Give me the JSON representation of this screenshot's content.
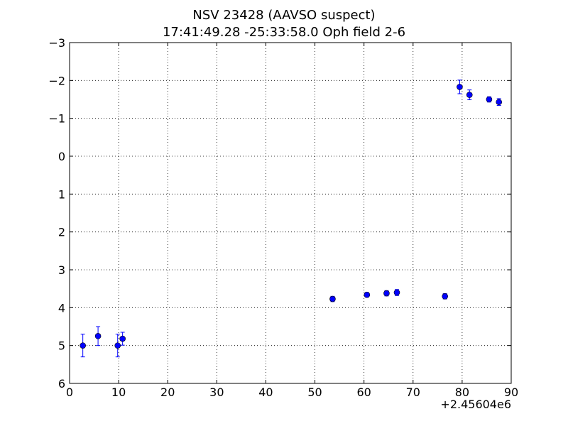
{
  "chart_data": {
    "type": "scatter",
    "title": "NSV 23428 (AAVSO suspect)",
    "subtitle": "17:41:49.28 -25:33:58.0 Oph field 2-6",
    "xlabel": "",
    "ylabel": "",
    "x_offset_label": "+2.45604e6",
    "xlim": [
      0,
      90
    ],
    "ylim": [
      6,
      -3
    ],
    "y_inverted": true,
    "grid": true,
    "grid_style": "dotted",
    "x_ticks": [
      0,
      10,
      20,
      30,
      40,
      50,
      60,
      70,
      80,
      90
    ],
    "y_ticks": [
      -3,
      -2,
      -1,
      0,
      1,
      2,
      3,
      4,
      5,
      6
    ],
    "x_tick_labels": [
      "0",
      "10",
      "20",
      "30",
      "40",
      "50",
      "60",
      "70",
      "80",
      "90"
    ],
    "y_tick_labels": [
      "−3",
      "−2",
      "−1",
      "0",
      "1",
      "2",
      "3",
      "4",
      "5",
      "6"
    ],
    "marker_color": "#0000ff",
    "errorbar_color": "#0000ff",
    "points": [
      {
        "x": 2.7,
        "y": 5.0,
        "err": 0.3
      },
      {
        "x": 5.8,
        "y": 4.75,
        "err": 0.25
      },
      {
        "x": 9.8,
        "y": 5.0,
        "err": 0.3
      },
      {
        "x": 10.8,
        "y": 4.82,
        "err": 0.17
      },
      {
        "x": 53.6,
        "y": 3.77,
        "err": 0.07
      },
      {
        "x": 60.6,
        "y": 3.66,
        "err": 0.06
      },
      {
        "x": 64.6,
        "y": 3.62,
        "err": 0.07
      },
      {
        "x": 66.7,
        "y": 3.6,
        "err": 0.08
      },
      {
        "x": 76.5,
        "y": 3.7,
        "err": 0.07
      },
      {
        "x": 79.5,
        "y": -1.83,
        "err": 0.18
      },
      {
        "x": 81.5,
        "y": -1.62,
        "err": 0.13
      },
      {
        "x": 85.5,
        "y": -1.5,
        "err": 0.07
      },
      {
        "x": 87.5,
        "y": -1.43,
        "err": 0.09
      }
    ]
  }
}
